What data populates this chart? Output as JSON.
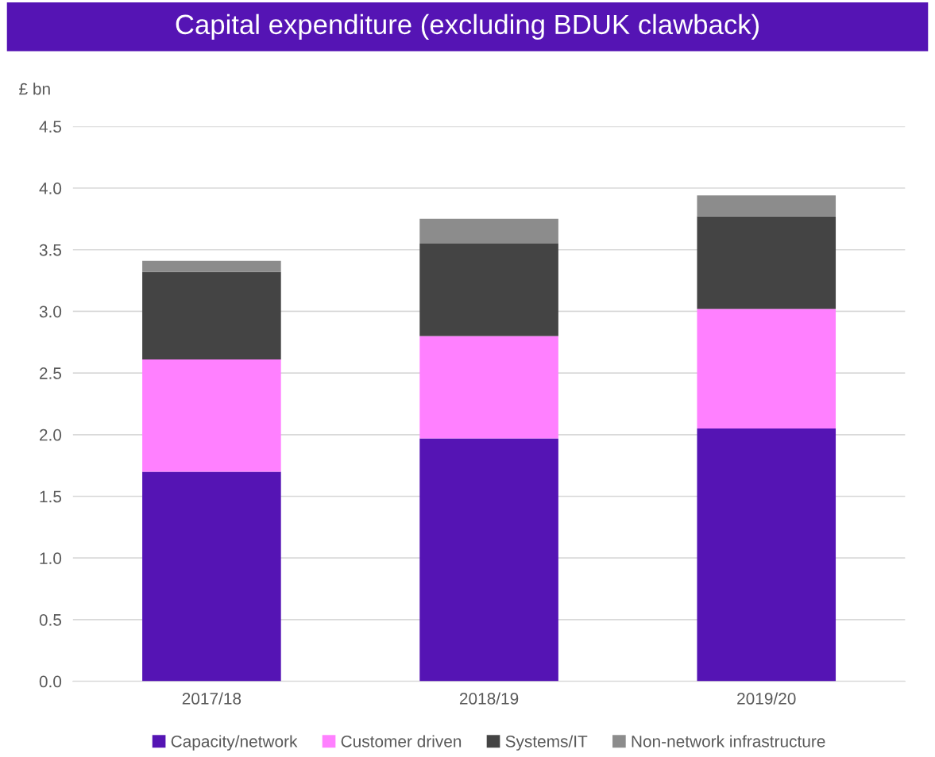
{
  "chart_data": {
    "type": "bar",
    "stacked": true,
    "title": "Capital expenditure (excluding BDUK clawback)",
    "ylabel": "£ bn",
    "categories": [
      "2017/18",
      "2018/19",
      "2019/20"
    ],
    "series": [
      {
        "name": "Capacity/network",
        "color": "#5514b4",
        "values": [
          1.7,
          1.97,
          2.05
        ]
      },
      {
        "name": "Customer driven",
        "color": "#ff80ff",
        "values": [
          0.91,
          0.83,
          0.97
        ]
      },
      {
        "name": "Systems/IT",
        "color": "#444444",
        "values": [
          0.71,
          0.75,
          0.75
        ]
      },
      {
        "name": "Non-network infrastructure",
        "color": "#8c8c8c",
        "values": [
          0.09,
          0.2,
          0.17
        ]
      }
    ],
    "ylim": [
      0,
      4.5
    ],
    "yticks": [
      {
        "value": 0,
        "label": "0.0"
      },
      {
        "value": 0.5,
        "label": "0.5"
      },
      {
        "value": 1,
        "label": "1.0"
      },
      {
        "value": 1.5,
        "label": "1.5"
      },
      {
        "value": 2,
        "label": "2.0"
      },
      {
        "value": 2.5,
        "label": "2.5"
      },
      {
        "value": 3,
        "label": "3.0"
      },
      {
        "value": 3.5,
        "label": "3.5"
      },
      {
        "value": 4,
        "label": "4.0"
      },
      {
        "value": 4.5,
        "label": "4.5"
      }
    ],
    "grid": "y",
    "legend": "bottom"
  }
}
